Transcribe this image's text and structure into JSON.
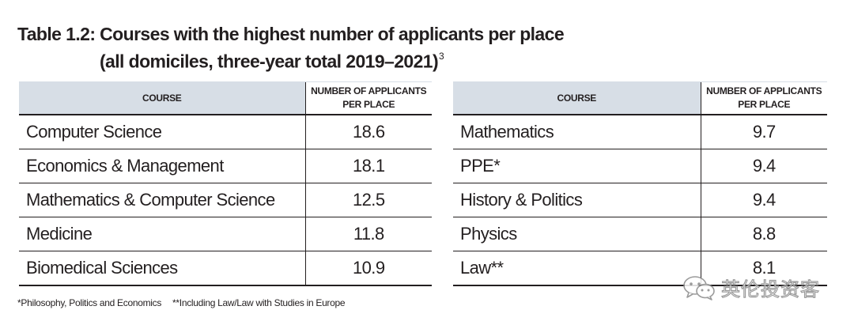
{
  "title": {
    "line1": "Table 1.2: Courses with the highest number of applicants per place",
    "line2": "(all domiciles, three-year total 2019–2021)",
    "footnote_ref": "3"
  },
  "tables": [
    {
      "header": {
        "course": "COURSE",
        "value_line1": "NUMBER OF APPLICANTS",
        "value_line2": "PER PLACE"
      },
      "rows": [
        {
          "course": "Computer Science",
          "value": "18.6"
        },
        {
          "course": "Economics & Management",
          "value": "18.1"
        },
        {
          "course": "Mathematics & Computer Science",
          "value": "12.5"
        },
        {
          "course": "Medicine",
          "value": "11.8"
        },
        {
          "course": "Biomedical Sciences",
          "value": "10.9"
        }
      ]
    },
    {
      "header": {
        "course": "COURSE",
        "value_line1": "NUMBER OF APPLICANTS",
        "value_line2": "PER PLACE"
      },
      "rows": [
        {
          "course": "Mathematics",
          "value": "9.7"
        },
        {
          "course": "PPE*",
          "value": "9.4"
        },
        {
          "course": "History & Politics",
          "value": "9.4"
        },
        {
          "course": "Physics",
          "value": "8.8"
        },
        {
          "course": "Law**",
          "value": "8.1"
        }
      ]
    }
  ],
  "footnotes": [
    "*Philosophy, Politics and Economics",
    "**Including Law/Law with Studies in Europe"
  ],
  "watermark": {
    "text": "英伦投资客",
    "icon": "wechat-logo-icon"
  },
  "colors": {
    "header_fill": "#d7dee6",
    "rule": "#231f20",
    "text": "#231f20"
  }
}
